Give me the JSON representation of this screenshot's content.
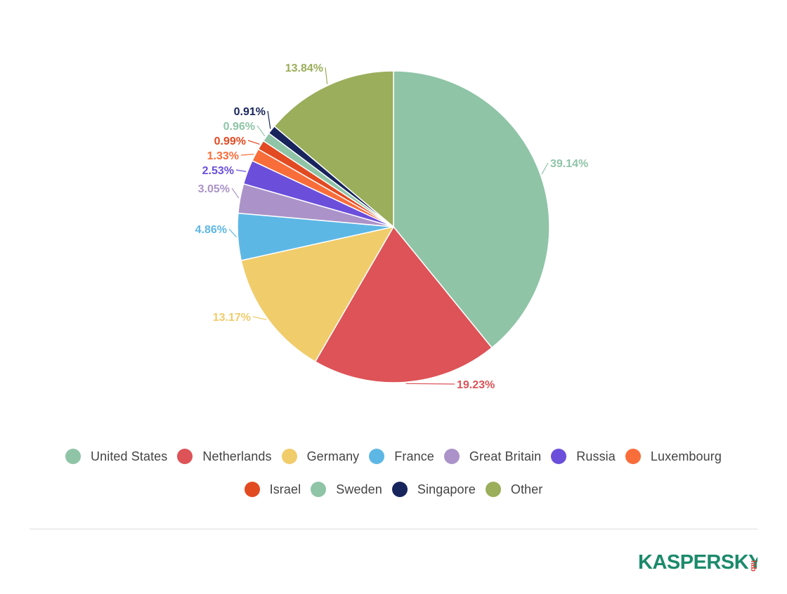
{
  "chart_data": {
    "type": "pie",
    "title": "",
    "slices": [
      {
        "name": "United States",
        "value": 39.14,
        "label": "39.14%",
        "color": "#8fc4a7"
      },
      {
        "name": "Netherlands",
        "value": 19.23,
        "label": "19.23%",
        "color": "#dd5357"
      },
      {
        "name": "Germany",
        "value": 13.17,
        "label": "13.17%",
        "color": "#f0cc6b"
      },
      {
        "name": "France",
        "value": 4.86,
        "label": "4.86%",
        "color": "#5db7e5"
      },
      {
        "name": "Great Britain",
        "value": 3.05,
        "label": "3.05%",
        "color": "#ab93c9"
      },
      {
        "name": "Russia",
        "value": 2.53,
        "label": "2.53%",
        "color": "#6b4fdb"
      },
      {
        "name": "Luxembourg",
        "value": 1.33,
        "label": "1.33%",
        "color": "#f96d3a"
      },
      {
        "name": "Israel",
        "value": 0.99,
        "label": "0.99%",
        "color": "#e24a22"
      },
      {
        "name": "Sweden",
        "value": 0.96,
        "label": "0.96%",
        "color": "#8fc4a7"
      },
      {
        "name": "Singapore",
        "value": 0.91,
        "label": "0.91%",
        "color": "#18245c"
      },
      {
        "name": "Other",
        "value": 13.84,
        "label": "13.84%",
        "color": "#9aae5b"
      }
    ],
    "legend_placement": "bottom"
  },
  "logo": {
    "text": "KASPERSKY",
    "sub": "lab",
    "color": "#1b8a6b",
    "accent": "#e3403a"
  }
}
